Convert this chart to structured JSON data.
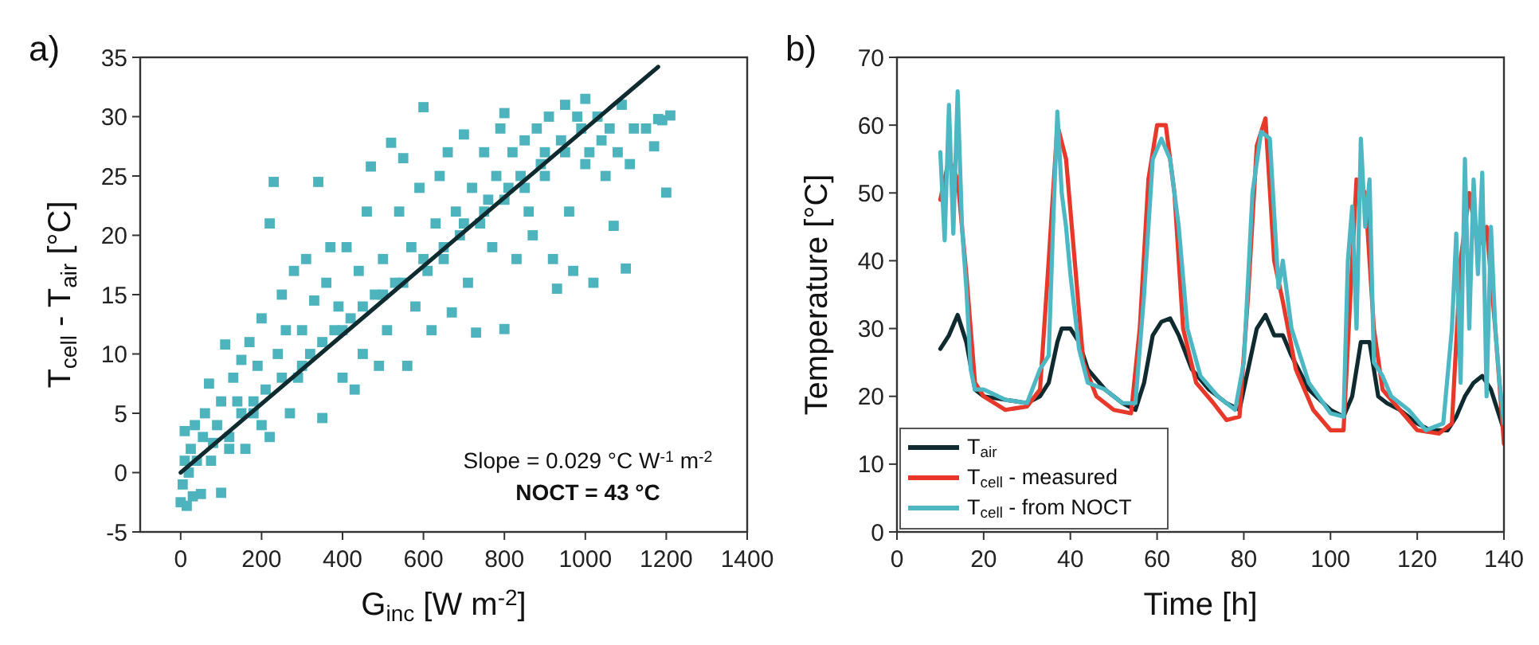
{
  "chart_data": [
    {
      "type": "scatter",
      "title": "a)",
      "xlabel": "G$_{inc}$ [W m$^{-2}$]",
      "ylabel": "T$_{cell}$ - T$_{air}$ [°C]",
      "xlim": [
        -100,
        1400
      ],
      "xticks": [
        0,
        200,
        400,
        600,
        800,
        1000,
        1200,
        1400
      ],
      "ylim": [
        -5,
        35
      ],
      "yticks": [
        -5,
        0,
        5,
        10,
        15,
        20,
        25,
        30,
        35
      ],
      "grid": false,
      "legend": false,
      "marker": "square",
      "annotations": [
        "Slope = 0.029 °C W$^{-1}$ m$^{-2}$",
        "NOCT = 43 °C"
      ],
      "series": [
        {
          "color": "#4db3bd",
          "x": [
            0,
            5,
            10,
            10,
            15,
            20,
            25,
            30,
            35,
            40,
            50,
            55,
            60,
            70,
            75,
            80,
            90,
            100,
            100,
            110,
            120,
            130,
            140,
            150,
            160,
            170,
            180,
            190,
            200,
            210,
            220,
            220,
            230,
            240,
            250,
            260,
            270,
            280,
            290,
            300,
            310,
            320,
            330,
            340,
            350,
            360,
            370,
            380,
            390,
            400,
            410,
            420,
            430,
            440,
            450,
            460,
            470,
            480,
            490,
            500,
            510,
            520,
            530,
            540,
            550,
            560,
            570,
            580,
            590,
            600,
            610,
            620,
            630,
            640,
            650,
            660,
            670,
            680,
            690,
            700,
            710,
            720,
            730,
            740,
            750,
            760,
            770,
            780,
            790,
            800,
            800,
            810,
            820,
            830,
            840,
            850,
            860,
            870,
            880,
            890,
            900,
            910,
            920,
            930,
            940,
            950,
            960,
            970,
            980,
            990,
            1000,
            1000,
            1010,
            1020,
            1030,
            1040,
            1050,
            1060,
            1070,
            1080,
            1090,
            1100,
            1110,
            1120,
            1150,
            1170,
            1180,
            1190,
            1200,
            1210,
            120,
            150,
            180,
            200,
            250,
            300,
            350,
            400,
            450,
            500,
            550,
            600,
            650,
            700,
            750,
            800,
            850,
            900,
            950
          ],
          "values": [
            -2.5,
            -1,
            1,
            3.5,
            -2.8,
            0,
            2,
            -2,
            4,
            1,
            -1.8,
            3,
            5,
            7.5,
            1,
            2.5,
            4,
            -1.7,
            6,
            10.8,
            3,
            8,
            6,
            9.5,
            2,
            11,
            5,
            9,
            13,
            7,
            3,
            21,
            24.5,
            10,
            15,
            12,
            5,
            17,
            8,
            12,
            18,
            10,
            14.5,
            24.5,
            4.6,
            16,
            19,
            12,
            14,
            8,
            19,
            13,
            7,
            17,
            10,
            22,
            25.8,
            15,
            9,
            18,
            12,
            27.8,
            16,
            22,
            26.5,
            9,
            19,
            14,
            24,
            30.8,
            17,
            12,
            21,
            25,
            18,
            27,
            13.5,
            22,
            20,
            28.5,
            16,
            24,
            11.8,
            21,
            27,
            23,
            19,
            25,
            29,
            12.1,
            30.3,
            24,
            27,
            18,
            25,
            28,
            22,
            20,
            29,
            26,
            27,
            30,
            18,
            15.5,
            28,
            31,
            22,
            17,
            30,
            29,
            31.5,
            26,
            27,
            16,
            30,
            28,
            25,
            29,
            20.8,
            27,
            31,
            17.2,
            26,
            29,
            29,
            27.5,
            29.8,
            29.7,
            23.6,
            30.1,
            2,
            5,
            6,
            4,
            8,
            9,
            11,
            12,
            14,
            15,
            16,
            18,
            19,
            21,
            22,
            23,
            24,
            25,
            27
          ]
        },
        {
          "type": "line",
          "color": "#0f2b2f",
          "marker": "none",
          "line_style": "solid",
          "x": [
            0,
            1180
          ],
          "values": [
            0,
            34.2
          ]
        }
      ]
    },
    {
      "type": "line",
      "title": "b)",
      "xlabel": "Time [h]",
      "ylabel": "Temperature [°C]",
      "xlim": [
        0,
        140
      ],
      "xticks": [
        0,
        20,
        40,
        60,
        80,
        100,
        120,
        140
      ],
      "ylim": [
        0,
        70
      ],
      "yticks": [
        0,
        10,
        20,
        30,
        40,
        50,
        60,
        70
      ],
      "grid": false,
      "legend": "bottom left",
      "marker": "none",
      "line_style": "solid",
      "series": [
        {
          "name": "T$_{air}$",
          "color": "#0f2b2f",
          "x": [
            10,
            12,
            14,
            16,
            18,
            20,
            25,
            30,
            33,
            35,
            37,
            38,
            40,
            42,
            44,
            48,
            52,
            55,
            57,
            59,
            61,
            63,
            65,
            68,
            72,
            76,
            79,
            81,
            83,
            85,
            87,
            89,
            91,
            95,
            100,
            103,
            105,
            107,
            109,
            111,
            113,
            116,
            120,
            123,
            127,
            129,
            131,
            133,
            135,
            137,
            140
          ],
          "values": [
            27,
            29,
            32,
            28,
            21,
            20,
            19.5,
            19,
            20,
            22,
            28,
            30,
            30,
            28,
            24,
            21,
            19,
            18,
            22,
            29,
            31,
            31.5,
            29,
            24,
            21,
            19,
            18,
            24,
            30,
            32,
            29,
            29,
            26,
            21,
            18,
            17,
            20,
            28,
            28,
            20,
            19,
            18,
            16,
            15,
            15,
            17,
            20,
            22,
            23,
            21,
            15
          ]
        },
        {
          "name": "T$_{cell}$ - measured",
          "color": "#e8382a",
          "x": [
            10,
            12,
            14,
            16,
            18,
            20,
            25,
            30,
            33,
            35,
            37,
            39,
            41,
            43,
            46,
            50,
            54,
            56,
            58,
            60,
            62,
            64,
            66,
            69,
            73,
            76,
            79,
            81,
            83,
            85,
            87,
            89,
            92,
            96,
            100,
            103,
            105,
            106,
            108,
            110,
            112,
            116,
            120,
            125,
            128,
            130,
            132,
            134,
            136,
            138,
            140
          ],
          "values": [
            49,
            55,
            52,
            38,
            22,
            20,
            18,
            18.5,
            21,
            40,
            60,
            55,
            40,
            25,
            20,
            18,
            17.5,
            30,
            52,
            60,
            60,
            50,
            30,
            22,
            19,
            16.5,
            17,
            35,
            57,
            61,
            40,
            34,
            24,
            18,
            15,
            15,
            40,
            52,
            50,
            30,
            21,
            18,
            15,
            14.5,
            16,
            40,
            50,
            42,
            45,
            30,
            13
          ]
        },
        {
          "name": "T$_{cell}$ - from NOCT",
          "color": "#4db8c4",
          "x": [
            10,
            11,
            12,
            13,
            14,
            15,
            16,
            17,
            18,
            20,
            25,
            30,
            33,
            35,
            36,
            37,
            38,
            39,
            40,
            42,
            44,
            48,
            52,
            55,
            57,
            59,
            61,
            63,
            65,
            67,
            70,
            74,
            78,
            80,
            82,
            84,
            86,
            88,
            89,
            91,
            95,
            100,
            103,
            104,
            105,
            106,
            107,
            108,
            109,
            110,
            112,
            114,
            118,
            122,
            126,
            128,
            129,
            130,
            131,
            132,
            133,
            134,
            135,
            136,
            137,
            138,
            139,
            140
          ],
          "values": [
            56,
            43,
            63,
            44,
            65,
            45,
            36,
            24,
            21,
            21,
            19.5,
            19,
            24,
            26,
            45,
            62,
            50,
            45,
            38,
            27,
            22,
            21,
            19,
            19,
            35,
            55,
            58,
            55,
            45,
            30,
            23,
            20,
            18,
            25,
            50,
            59,
            58,
            36,
            40,
            30,
            22,
            17.5,
            17,
            40,
            48,
            30,
            58,
            45,
            52,
            25,
            23,
            20,
            18,
            15,
            16,
            30,
            44,
            22,
            55,
            30,
            52,
            38,
            53,
            20,
            45,
            30,
            22,
            16
          ]
        }
      ]
    }
  ]
}
